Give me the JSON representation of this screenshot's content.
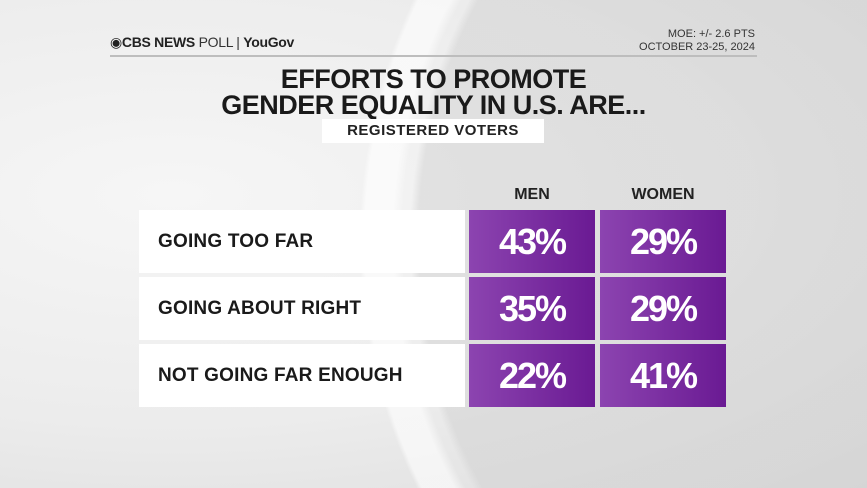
{
  "header": {
    "brand": "CBS NEWS",
    "brand_suffix": "POLL",
    "partner": "YouGov",
    "moe": "MOE: +/- 2.6 PTS",
    "dates": "OCTOBER 23-25, 2024"
  },
  "chart_data": {
    "type": "table",
    "title_line1": "EFFORTS TO PROMOTE",
    "title_line2": "GENDER EQUALITY IN U.S. ARE...",
    "subtitle": "REGISTERED VOTERS",
    "columns": [
      "MEN",
      "WOMEN"
    ],
    "categories": [
      "GOING TOO FAR",
      "GOING ABOUT RIGHT",
      "NOT GOING FAR ENOUGH"
    ],
    "series": [
      {
        "name": "MEN",
        "values": [
          43,
          35,
          22
        ]
      },
      {
        "name": "WOMEN",
        "values": [
          29,
          29,
          41
        ]
      }
    ],
    "display": [
      [
        "43%",
        "29%"
      ],
      [
        "35%",
        "29%"
      ],
      [
        "22%",
        "41%"
      ]
    ],
    "unit": "%",
    "colors": {
      "cell_start": "#8c44b0",
      "cell_end": "#6a1a93",
      "label_bg": "#ffffff"
    }
  }
}
